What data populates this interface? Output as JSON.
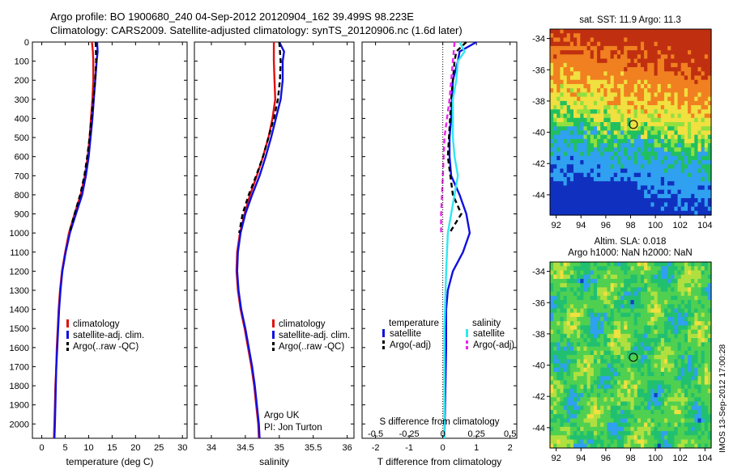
{
  "header": {
    "title_line1": "Argo profile: BO 1900680_240 04-Sep-2012 20120904_162 39.499S 98.223E",
    "title_line2": "Climatology: CARS2009. Satellite-adjusted climatology: synTS_20120906.nc (1.6d later)"
  },
  "watermark": "IMOS 13-Sep-2012 17:00:28",
  "colors": {
    "climatology": "#e01010",
    "satellite": "#1010e0",
    "argo": "#000000",
    "sal_satellite": "#30e8f0",
    "sal_argo": "#f020f0"
  },
  "chart_data": [
    {
      "type": "line",
      "xlabel": "temperature (deg C)",
      "ylabel": "",
      "xlim": [
        -2,
        31
      ],
      "ylim": [
        2075,
        0
      ],
      "xticks": [
        0,
        5,
        10,
        15,
        20,
        25,
        30
      ],
      "yticks": [
        0,
        100,
        200,
        300,
        400,
        500,
        600,
        700,
        800,
        900,
        1000,
        1100,
        1200,
        1300,
        1400,
        1500,
        1600,
        1700,
        1800,
        1900,
        2000
      ],
      "legend": {
        "placement": "lower-center",
        "entries": [
          "climatology",
          "satellite-adj. clim.",
          "Argo(..raw -QC)"
        ]
      },
      "series": [
        {
          "name": "climatology",
          "color": "#e01010",
          "dash": "",
          "points": [
            [
              10.7,
              0
            ],
            [
              10.9,
              50
            ],
            [
              11.0,
              100
            ],
            [
              11.0,
              200
            ],
            [
              10.8,
              300
            ],
            [
              10.5,
              400
            ],
            [
              10.2,
              500
            ],
            [
              9.8,
              600
            ],
            [
              9.2,
              700
            ],
            [
              8.3,
              800
            ],
            [
              7.0,
              900
            ],
            [
              5.8,
              1000
            ],
            [
              5.0,
              1100
            ],
            [
              4.3,
              1200
            ],
            [
              3.9,
              1300
            ],
            [
              3.6,
              1400
            ],
            [
              3.4,
              1500
            ],
            [
              3.2,
              1600
            ],
            [
              3.1,
              1700
            ],
            [
              2.9,
              1800
            ],
            [
              2.8,
              1900
            ],
            [
              2.7,
              2000
            ],
            [
              2.6,
              2075
            ]
          ]
        },
        {
          "name": "satellite-adj. clim.",
          "color": "#1010e0",
          "dash": "",
          "points": [
            [
              11.8,
              0
            ],
            [
              11.9,
              50
            ],
            [
              11.7,
              100
            ],
            [
              11.4,
              200
            ],
            [
              11.1,
              300
            ],
            [
              10.8,
              400
            ],
            [
              10.4,
              500
            ],
            [
              10.0,
              600
            ],
            [
              9.4,
              700
            ],
            [
              8.6,
              800
            ],
            [
              7.3,
              900
            ],
            [
              6.0,
              1000
            ],
            [
              5.1,
              1100
            ],
            [
              4.4,
              1200
            ],
            [
              4.0,
              1300
            ],
            [
              3.7,
              1400
            ],
            [
              3.5,
              1500
            ],
            [
              3.3,
              1600
            ],
            [
              3.1,
              1700
            ],
            [
              3.0,
              1800
            ],
            [
              2.9,
              1900
            ],
            [
              2.8,
              2000
            ],
            [
              2.7,
              2075
            ]
          ]
        },
        {
          "name": "Argo(..raw -QC)",
          "color": "#000000",
          "dash": "6,4",
          "points": [
            [
              11.5,
              0
            ],
            [
              11.6,
              100
            ],
            [
              11.4,
              200
            ],
            [
              11.0,
              300
            ],
            [
              10.6,
              400
            ],
            [
              10.2,
              500
            ],
            [
              9.7,
              600
            ],
            [
              9.1,
              700
            ],
            [
              8.2,
              800
            ],
            [
              7.0,
              900
            ],
            [
              5.9,
              1000
            ]
          ]
        }
      ]
    },
    {
      "type": "line",
      "xlabel": "salinity",
      "ylabel": "",
      "xlim": [
        33.75,
        36.1
      ],
      "ylim": [
        2075,
        0
      ],
      "xticks": [
        34,
        34.5,
        35,
        35.5,
        36
      ],
      "legend": {
        "placement": "lower-right",
        "entries": [
          "climatology",
          "satellite-adj. clim.",
          "Argo(..raw -QC)"
        ]
      },
      "annotation": [
        "Argo UK",
        "PI: Jon Turton"
      ],
      "series": [
        {
          "name": "climatology",
          "color": "#e01010",
          "dash": "",
          "points": [
            [
              34.92,
              0
            ],
            [
              34.92,
              100
            ],
            [
              34.93,
              200
            ],
            [
              34.94,
              300
            ],
            [
              34.9,
              400
            ],
            [
              34.84,
              500
            ],
            [
              34.76,
              600
            ],
            [
              34.67,
              700
            ],
            [
              34.57,
              800
            ],
            [
              34.49,
              900
            ],
            [
              34.42,
              1000
            ],
            [
              34.38,
              1100
            ],
            [
              34.37,
              1200
            ],
            [
              34.39,
              1300
            ],
            [
              34.43,
              1400
            ],
            [
              34.49,
              1500
            ],
            [
              34.54,
              1600
            ],
            [
              34.59,
              1700
            ],
            [
              34.63,
              1800
            ],
            [
              34.66,
              1900
            ],
            [
              34.69,
              2000
            ],
            [
              34.7,
              2075
            ]
          ]
        },
        {
          "name": "satellite-adj. clim.",
          "color": "#1010e0",
          "dash": "",
          "points": [
            [
              35.0,
              0
            ],
            [
              35.07,
              50
            ],
            [
              35.05,
              100
            ],
            [
              35.05,
              200
            ],
            [
              35.02,
              300
            ],
            [
              34.95,
              400
            ],
            [
              34.88,
              500
            ],
            [
              34.8,
              600
            ],
            [
              34.71,
              700
            ],
            [
              34.6,
              800
            ],
            [
              34.5,
              900
            ],
            [
              34.43,
              1000
            ],
            [
              34.39,
              1100
            ],
            [
              34.38,
              1200
            ],
            [
              34.4,
              1300
            ],
            [
              34.44,
              1400
            ],
            [
              34.5,
              1500
            ],
            [
              34.55,
              1600
            ],
            [
              34.6,
              1700
            ],
            [
              34.64,
              1800
            ],
            [
              34.67,
              1900
            ],
            [
              34.7,
              2000
            ],
            [
              34.71,
              2075
            ]
          ]
        },
        {
          "name": "Argo(..raw -QC)",
          "color": "#000000",
          "dash": "6,4",
          "points": [
            [
              35.0,
              0
            ],
            [
              35.02,
              100
            ],
            [
              35.01,
              200
            ],
            [
              34.98,
              300
            ],
            [
              34.92,
              400
            ],
            [
              34.84,
              500
            ],
            [
              34.76,
              600
            ],
            [
              34.66,
              700
            ],
            [
              34.55,
              800
            ],
            [
              34.46,
              900
            ],
            [
              34.41,
              1000
            ]
          ]
        }
      ]
    },
    {
      "type": "line",
      "xlabel": "T difference from climatology",
      "xlabel_top": "S difference from climatology",
      "xlim": [
        -2.4,
        2.2
      ],
      "ylim": [
        2075,
        0
      ],
      "xticks": [
        -2,
        -1,
        0,
        1,
        2
      ],
      "xticks_top": [
        "-0.5",
        "-0.25",
        "0",
        "0.25",
        "0.5"
      ],
      "legend": {
        "placement": "lower-center",
        "group_temperature": "temperature",
        "group_salinity": "salinity",
        "entries_temperature": [
          "satellite",
          "Argo(-adj)"
        ],
        "entries_salinity": [
          "satellite",
          "Argo(-adj)"
        ]
      },
      "series": [
        {
          "name": "temperature satellite",
          "color": "#1010e0",
          "dash": "",
          "points": [
            [
              1.0,
              0
            ],
            [
              0.5,
              50
            ],
            [
              0.45,
              100
            ],
            [
              0.3,
              200
            ],
            [
              0.25,
              400
            ],
            [
              0.2,
              500
            ],
            [
              0.2,
              600
            ],
            [
              0.25,
              700
            ],
            [
              0.5,
              800
            ],
            [
              0.7,
              900
            ],
            [
              0.8,
              1000
            ],
            [
              0.6,
              1100
            ],
            [
              0.3,
              1200
            ],
            [
              0.15,
              1300
            ],
            [
              0.1,
              1400
            ],
            [
              0.1,
              1600
            ],
            [
              0.05,
              2075
            ]
          ]
        },
        {
          "name": "temperature Argo(-adj)",
          "color": "#000000",
          "dash": "6,4",
          "points": [
            [
              0.7,
              0
            ],
            [
              0.4,
              50
            ],
            [
              0.35,
              100
            ],
            [
              0.25,
              300
            ],
            [
              0.15,
              600
            ],
            [
              0.3,
              800
            ],
            [
              0.55,
              900
            ],
            [
              0.2,
              1000
            ]
          ]
        },
        {
          "name": "salinity satellite",
          "color": "#30e8f0",
          "dash": "",
          "points": [
            [
              0.5,
              0
            ],
            [
              0.65,
              50
            ],
            [
              0.45,
              100
            ],
            [
              0.4,
              200
            ],
            [
              0.3,
              300
            ],
            [
              0.3,
              500
            ],
            [
              0.35,
              600
            ],
            [
              0.45,
              700
            ],
            [
              0.25,
              900
            ],
            [
              0.15,
              1000
            ],
            [
              0.1,
              1200
            ],
            [
              0.05,
              1500
            ],
            [
              0.05,
              2075
            ]
          ]
        },
        {
          "name": "salinity Argo(-adj)",
          "color": "#f020f0",
          "dash": "6,4",
          "points": [
            [
              0.35,
              0
            ],
            [
              0.3,
              100
            ],
            [
              0.2,
              300
            ],
            [
              0.05,
              500
            ],
            [
              0.0,
              700
            ],
            [
              -0.05,
              900
            ],
            [
              -0.05,
              1000
            ]
          ]
        }
      ]
    },
    {
      "type": "heatmap",
      "title": "sat. SST: 11.9 Argo: 11.3",
      "xlim": [
        91.5,
        104.5
      ],
      "ylim": [
        -45.3,
        -33.4
      ],
      "xticks": [
        92,
        94,
        96,
        98,
        100,
        102,
        104
      ],
      "yticks": [
        -34,
        -36,
        -38,
        -40,
        -42,
        -44
      ],
      "colors": [
        "#1030c0",
        "#30a0f0",
        "#20c060",
        "#90e040",
        "#f0e040",
        "#f08020",
        "#c03010"
      ],
      "marker": [
        98.223,
        -39.499
      ]
    },
    {
      "type": "heatmap",
      "title_line1": "Altim. SLA: 0.018",
      "title_line2": "Argo h1000: NaN h2000: NaN",
      "xlim": [
        91.5,
        104.5
      ],
      "ylim": [
        -45.3,
        -33.4
      ],
      "xticks": [
        92,
        94,
        96,
        98,
        100,
        102,
        104
      ],
      "yticks": [
        -34,
        -36,
        -38,
        -40,
        -42,
        -44
      ],
      "colors": [
        "#1040c0",
        "#30a0f0",
        "#20c070",
        "#50d050",
        "#b0e040",
        "#f0e040"
      ],
      "marker": [
        98.223,
        -39.499
      ]
    }
  ]
}
